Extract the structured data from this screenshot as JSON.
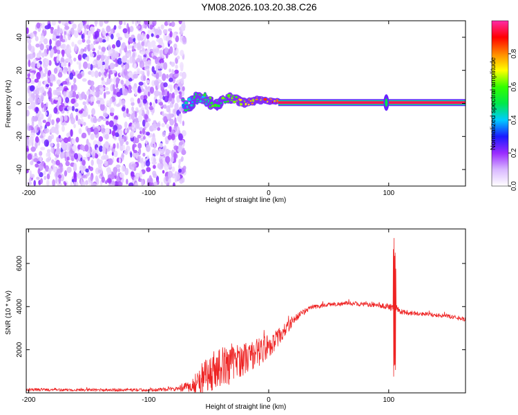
{
  "title": "YM08.2026.103.20.38.C26",
  "chart_data": [
    {
      "type": "heatmap",
      "xlabel": "Height of straight line (km)",
      "ylabel": "Frequency (Hz)",
      "xlim": [
        -202,
        164
      ],
      "ylim": [
        -50,
        50
      ],
      "xticks": [
        "-200",
        "-100",
        "0",
        "100"
      ],
      "xtick_values": [
        -200,
        -100,
        0,
        100
      ],
      "yticks": [
        "-40",
        "-20",
        "0",
        "20",
        "40"
      ],
      "ytick_values": [
        -40,
        -20,
        0,
        20,
        40
      ],
      "colorbar": {
        "label": "Normalized spectral amplitude",
        "range": [
          0,
          1
        ],
        "ticks": [
          "0.0",
          "0.2",
          "0.4",
          "0.6",
          "0.8"
        ],
        "tick_values": [
          0,
          0.2,
          0.4,
          0.6,
          0.8
        ],
        "colors": [
          "#ffffff",
          "#d9b8ff",
          "#9a2bff",
          "#1a1aff",
          "#00ccff",
          "#00e84a",
          "#33ff00",
          "#ffff00",
          "#ff8800",
          "#ff0000",
          "#ff2aa8"
        ]
      },
      "noise_region_x": [
        -202,
        -70
      ],
      "transition_region_x": [
        -72,
        8
      ],
      "tone_line": {
        "x_start": 8,
        "x_end": 164,
        "frequency": 0.5,
        "amplitude": 0.95
      },
      "spike_x": 98
    },
    {
      "type": "line",
      "xlabel": "Height of straight line (km)",
      "ylabel": "SNR (10 * v/v)",
      "xlim": [
        -202,
        164
      ],
      "ylim": [
        0,
        7600
      ],
      "xticks": [
        "-200",
        "-100",
        "0",
        "100"
      ],
      "xtick_values": [
        -200,
        -100,
        0,
        100
      ],
      "yticks": [
        "2000",
        "4000",
        "6000"
      ],
      "ytick_values": [
        2000,
        4000,
        6000
      ],
      "color": "#ee2222",
      "envelope": {
        "x": [
          -202,
          -150,
          -100,
          -75,
          -65,
          -55,
          -45,
          -35,
          -25,
          -15,
          -5,
          5,
          15,
          25,
          35,
          50,
          70,
          90,
          100,
          106,
          110,
          130,
          150,
          164
        ],
        "y": [
          150,
          140,
          140,
          180,
          300,
          700,
          1100,
          1300,
          1500,
          1700,
          2000,
          2400,
          3000,
          3600,
          3950,
          4100,
          4150,
          4050,
          4000,
          3900,
          3750,
          3650,
          3550,
          3400
        ],
        "jitter": [
          80,
          80,
          80,
          120,
          400,
          900,
          1200,
          1100,
          1000,
          900,
          800,
          600,
          350,
          200,
          150,
          120,
          120,
          120,
          200,
          300,
          150,
          120,
          120,
          120
        ]
      },
      "spike": {
        "x": 105,
        "max": 7600,
        "min": 700
      }
    }
  ]
}
